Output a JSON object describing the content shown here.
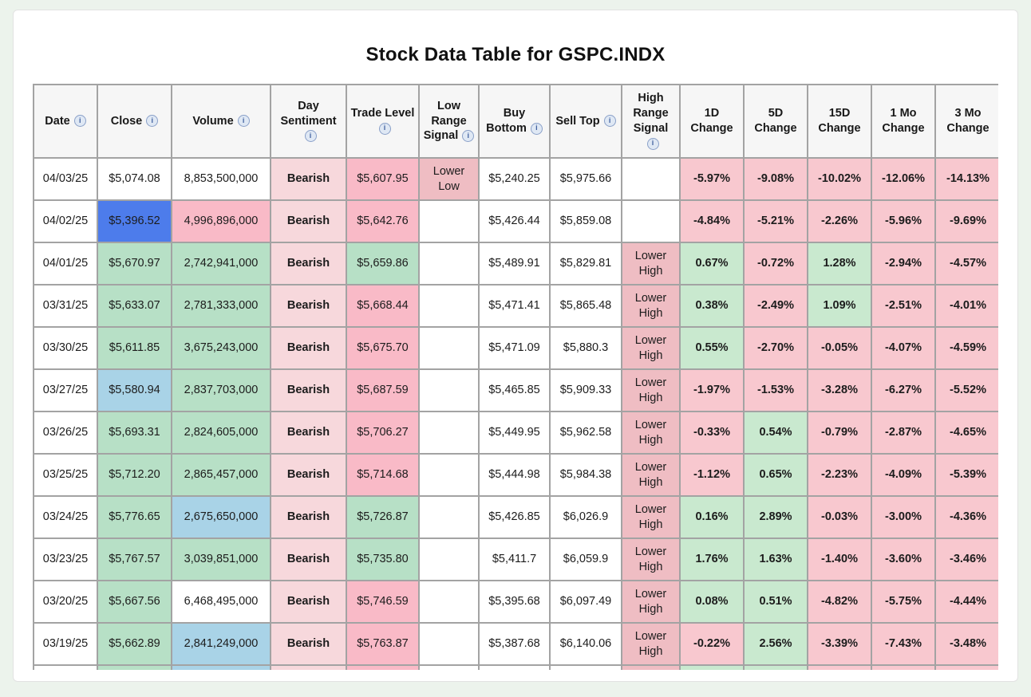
{
  "page": {
    "title": "Stock Data Table for GSPC.INDX"
  },
  "colors": {
    "page_bg": "#ecf3ec",
    "card_bg": "#ffffff",
    "header_bg": "#f6f6f6",
    "border": "#a3a3a3",
    "green_cell": "#b7e0c6",
    "light_blue_cell": "#a9d3e7",
    "strong_blue_cell": "#4d7ceb",
    "pink_cell": "#f9bac7",
    "sentiment_pink": "#f7d8dc",
    "signal_pink": "#efbdc3",
    "change_green_bg": "#c9e9cf",
    "change_red_bg": "#f8c8cf",
    "bearish_text": "#86202e",
    "up_text": "#157a15",
    "down_text": "#a31f2b",
    "close_navy_text": "#2b2ba6",
    "volume_red_text": "#f23b2f",
    "info_icon": "#3f5f9e"
  },
  "table": {
    "columns": [
      {
        "label": "Date",
        "info": true,
        "key": "date"
      },
      {
        "label": "Close",
        "info": true,
        "key": "close"
      },
      {
        "label": "Volume",
        "info": true,
        "key": "volume"
      },
      {
        "label": "Day Sentiment",
        "info": true,
        "key": "day-sentiment"
      },
      {
        "label": "Trade Level",
        "info": true,
        "key": "trade-level"
      },
      {
        "label": "Low Range Signal",
        "info": true,
        "key": "low-range-signal"
      },
      {
        "label": "Buy Bottom",
        "info": true,
        "key": "buy-bottom"
      },
      {
        "label": "Sell Top",
        "info": true,
        "key": "sell-top"
      },
      {
        "label": "High Range Signal",
        "info": true,
        "key": "high-range-signal"
      },
      {
        "label": "1D Change",
        "info": false,
        "key": "1d-change"
      },
      {
        "label": "5D Change",
        "info": false,
        "key": "5d-change"
      },
      {
        "label": "15D Change",
        "info": false,
        "key": "15d-change"
      },
      {
        "label": "1 Mo Change",
        "info": false,
        "key": "1mo-change"
      },
      {
        "label": "3 Mo Change",
        "info": false,
        "key": "3mo-change"
      }
    ],
    "rows": [
      {
        "cells": [
          {
            "t": "04/03/25",
            "c": "plain"
          },
          {
            "t": "$5,074.08",
            "c": "navy"
          },
          {
            "t": "8,853,500,000",
            "c": "redtext"
          },
          {
            "t": "Bearish",
            "c": "sent"
          },
          {
            "t": "$5,607.95",
            "c": "pink"
          },
          {
            "t": "Lower Low",
            "c": "signal"
          },
          {
            "t": "$5,240.25",
            "c": "plain"
          },
          {
            "t": "$5,975.66",
            "c": "plain"
          },
          {
            "t": "",
            "c": "empty"
          },
          {
            "t": "-5.97%",
            "c": "chgdn"
          },
          {
            "t": "-9.08%",
            "c": "chgdn"
          },
          {
            "t": "-10.02%",
            "c": "chgdn"
          },
          {
            "t": "-12.06%",
            "c": "chgdn"
          },
          {
            "t": "-14.13%",
            "c": "chgdn"
          }
        ]
      },
      {
        "cells": [
          {
            "t": "04/02/25",
            "c": "plain"
          },
          {
            "t": "$5,396.52",
            "c": "bluestrong"
          },
          {
            "t": "4,996,896,000",
            "c": "pink"
          },
          {
            "t": "Bearish",
            "c": "sent"
          },
          {
            "t": "$5,642.76",
            "c": "pink"
          },
          {
            "t": "",
            "c": "empty"
          },
          {
            "t": "$5,426.44",
            "c": "plain"
          },
          {
            "t": "$5,859.08",
            "c": "plain"
          },
          {
            "t": "",
            "c": "empty"
          },
          {
            "t": "-4.84%",
            "c": "chgdn"
          },
          {
            "t": "-5.21%",
            "c": "chgdn"
          },
          {
            "t": "-2.26%",
            "c": "chgdn"
          },
          {
            "t": "-5.96%",
            "c": "chgdn"
          },
          {
            "t": "-9.69%",
            "c": "chgdn"
          }
        ]
      },
      {
        "cells": [
          {
            "t": "04/01/25",
            "c": "plain"
          },
          {
            "t": "$5,670.97",
            "c": "green"
          },
          {
            "t": "2,742,941,000",
            "c": "green"
          },
          {
            "t": "Bearish",
            "c": "sent"
          },
          {
            "t": "$5,659.86",
            "c": "green"
          },
          {
            "t": "",
            "c": "empty"
          },
          {
            "t": "$5,489.91",
            "c": "plain"
          },
          {
            "t": "$5,829.81",
            "c": "plain"
          },
          {
            "t": "Lower High",
            "c": "signal"
          },
          {
            "t": "0.67%",
            "c": "chgup"
          },
          {
            "t": "-0.72%",
            "c": "chgdn"
          },
          {
            "t": "1.28%",
            "c": "chgup"
          },
          {
            "t": "-2.94%",
            "c": "chgdn"
          },
          {
            "t": "-4.57%",
            "c": "chgdn"
          }
        ]
      },
      {
        "cells": [
          {
            "t": "03/31/25",
            "c": "plain"
          },
          {
            "t": "$5,633.07",
            "c": "green"
          },
          {
            "t": "2,781,333,000",
            "c": "green"
          },
          {
            "t": "Bearish",
            "c": "sent"
          },
          {
            "t": "$5,668.44",
            "c": "pink"
          },
          {
            "t": "",
            "c": "empty"
          },
          {
            "t": "$5,471.41",
            "c": "plain"
          },
          {
            "t": "$5,865.48",
            "c": "plain"
          },
          {
            "t": "Lower High",
            "c": "signal"
          },
          {
            "t": "0.38%",
            "c": "chgup"
          },
          {
            "t": "-2.49%",
            "c": "chgdn"
          },
          {
            "t": "1.09%",
            "c": "chgup"
          },
          {
            "t": "-2.51%",
            "c": "chgdn"
          },
          {
            "t": "-4.01%",
            "c": "chgdn"
          }
        ]
      },
      {
        "cells": [
          {
            "t": "03/30/25",
            "c": "plain"
          },
          {
            "t": "$5,611.85",
            "c": "green"
          },
          {
            "t": "3,675,243,000",
            "c": "green"
          },
          {
            "t": "Bearish",
            "c": "sent"
          },
          {
            "t": "$5,675.70",
            "c": "pink"
          },
          {
            "t": "",
            "c": "empty"
          },
          {
            "t": "$5,471.09",
            "c": "plain"
          },
          {
            "t": "$5,880.3",
            "c": "plain"
          },
          {
            "t": "Lower High",
            "c": "signal"
          },
          {
            "t": "0.55%",
            "c": "chgup"
          },
          {
            "t": "-2.70%",
            "c": "chgdn"
          },
          {
            "t": "-0.05%",
            "c": "chgdn"
          },
          {
            "t": "-4.07%",
            "c": "chgdn"
          },
          {
            "t": "-4.59%",
            "c": "chgdn"
          }
        ]
      },
      {
        "cells": [
          {
            "t": "03/27/25",
            "c": "plain"
          },
          {
            "t": "$5,580.94",
            "c": "blue"
          },
          {
            "t": "2,837,703,000",
            "c": "green"
          },
          {
            "t": "Bearish",
            "c": "sent"
          },
          {
            "t": "$5,687.59",
            "c": "pink"
          },
          {
            "t": "",
            "c": "empty"
          },
          {
            "t": "$5,465.85",
            "c": "plain"
          },
          {
            "t": "$5,909.33",
            "c": "plain"
          },
          {
            "t": "Lower High",
            "c": "signal"
          },
          {
            "t": "-1.97%",
            "c": "chgdn"
          },
          {
            "t": "-1.53%",
            "c": "chgdn"
          },
          {
            "t": "-3.28%",
            "c": "chgdn"
          },
          {
            "t": "-6.27%",
            "c": "chgdn"
          },
          {
            "t": "-5.52%",
            "c": "chgdn"
          }
        ]
      },
      {
        "cells": [
          {
            "t": "03/26/25",
            "c": "plain"
          },
          {
            "t": "$5,693.31",
            "c": "green"
          },
          {
            "t": "2,824,605,000",
            "c": "green"
          },
          {
            "t": "Bearish",
            "c": "sent"
          },
          {
            "t": "$5,706.27",
            "c": "pink"
          },
          {
            "t": "",
            "c": "empty"
          },
          {
            "t": "$5,449.95",
            "c": "plain"
          },
          {
            "t": "$5,962.58",
            "c": "plain"
          },
          {
            "t": "Lower High",
            "c": "signal"
          },
          {
            "t": "-0.33%",
            "c": "chgdn"
          },
          {
            "t": "0.54%",
            "c": "chgup"
          },
          {
            "t": "-0.79%",
            "c": "chgdn"
          },
          {
            "t": "-2.87%",
            "c": "chgdn"
          },
          {
            "t": "-4.65%",
            "c": "chgdn"
          }
        ]
      },
      {
        "cells": [
          {
            "t": "03/25/25",
            "c": "plain"
          },
          {
            "t": "$5,712.20",
            "c": "green"
          },
          {
            "t": "2,865,457,000",
            "c": "green"
          },
          {
            "t": "Bearish",
            "c": "sent"
          },
          {
            "t": "$5,714.68",
            "c": "pink"
          },
          {
            "t": "",
            "c": "empty"
          },
          {
            "t": "$5,444.98",
            "c": "plain"
          },
          {
            "t": "$5,984.38",
            "c": "plain"
          },
          {
            "t": "Lower High",
            "c": "signal"
          },
          {
            "t": "-1.12%",
            "c": "chgdn"
          },
          {
            "t": "0.65%",
            "c": "chgup"
          },
          {
            "t": "-2.23%",
            "c": "chgdn"
          },
          {
            "t": "-4.09%",
            "c": "chgdn"
          },
          {
            "t": "-5.39%",
            "c": "chgdn"
          }
        ]
      },
      {
        "cells": [
          {
            "t": "03/24/25",
            "c": "plain"
          },
          {
            "t": "$5,776.65",
            "c": "green"
          },
          {
            "t": "2,675,650,000",
            "c": "blue"
          },
          {
            "t": "Bearish",
            "c": "sent"
          },
          {
            "t": "$5,726.87",
            "c": "green"
          },
          {
            "t": "",
            "c": "empty"
          },
          {
            "t": "$5,426.85",
            "c": "plain"
          },
          {
            "t": "$6,026.9",
            "c": "plain"
          },
          {
            "t": "Lower High",
            "c": "signal"
          },
          {
            "t": "0.16%",
            "c": "chgup"
          },
          {
            "t": "2.89%",
            "c": "chgup"
          },
          {
            "t": "-0.03%",
            "c": "chgdn"
          },
          {
            "t": "-3.00%",
            "c": "chgdn"
          },
          {
            "t": "-4.36%",
            "c": "chgdn"
          }
        ]
      },
      {
        "cells": [
          {
            "t": "03/23/25",
            "c": "plain"
          },
          {
            "t": "$5,767.57",
            "c": "green"
          },
          {
            "t": "3,039,851,000",
            "c": "green"
          },
          {
            "t": "Bearish",
            "c": "sent"
          },
          {
            "t": "$5,735.80",
            "c": "green"
          },
          {
            "t": "",
            "c": "empty"
          },
          {
            "t": "$5,411.7",
            "c": "plain"
          },
          {
            "t": "$6,059.9",
            "c": "plain"
          },
          {
            "t": "Lower High",
            "c": "signal"
          },
          {
            "t": "1.76%",
            "c": "chgup"
          },
          {
            "t": "1.63%",
            "c": "chgup"
          },
          {
            "t": "-1.40%",
            "c": "chgdn"
          },
          {
            "t": "-3.60%",
            "c": "chgdn"
          },
          {
            "t": "-3.46%",
            "c": "chgdn"
          }
        ]
      },
      {
        "cells": [
          {
            "t": "03/20/25",
            "c": "plain"
          },
          {
            "t": "$5,667.56",
            "c": "green"
          },
          {
            "t": "6,468,495,000",
            "c": "redtext"
          },
          {
            "t": "Bearish",
            "c": "sent"
          },
          {
            "t": "$5,746.59",
            "c": "pink"
          },
          {
            "t": "",
            "c": "empty"
          },
          {
            "t": "$5,395.68",
            "c": "plain"
          },
          {
            "t": "$6,097.49",
            "c": "plain"
          },
          {
            "t": "Lower High",
            "c": "signal"
          },
          {
            "t": "0.08%",
            "c": "chgup"
          },
          {
            "t": "0.51%",
            "c": "chgup"
          },
          {
            "t": "-4.82%",
            "c": "chgdn"
          },
          {
            "t": "-5.75%",
            "c": "chgdn"
          },
          {
            "t": "-4.44%",
            "c": "chgdn"
          }
        ]
      },
      {
        "cells": [
          {
            "t": "03/19/25",
            "c": "plain"
          },
          {
            "t": "$5,662.89",
            "c": "green"
          },
          {
            "t": "2,841,249,000",
            "c": "blue"
          },
          {
            "t": "Bearish",
            "c": "sent"
          },
          {
            "t": "$5,763.87",
            "c": "pink"
          },
          {
            "t": "",
            "c": "empty"
          },
          {
            "t": "$5,387.68",
            "c": "plain"
          },
          {
            "t": "$6,140.06",
            "c": "plain"
          },
          {
            "t": "Lower High",
            "c": "signal"
          },
          {
            "t": "-0.22%",
            "c": "chgdn"
          },
          {
            "t": "2.56%",
            "c": "chgup"
          },
          {
            "t": "-3.39%",
            "c": "chgdn"
          },
          {
            "t": "-7.43%",
            "c": "chgdn"
          },
          {
            "t": "-3.48%",
            "c": "chgdn"
          }
        ]
      }
    ],
    "partial_row": {
      "cells": [
        "plain",
        "green",
        "blue",
        "sent",
        "pink",
        "empty",
        "plain",
        "plain",
        "signal",
        "chgup",
        "chgup",
        "chgdn",
        "chgdn",
        "chgdn"
      ]
    }
  }
}
